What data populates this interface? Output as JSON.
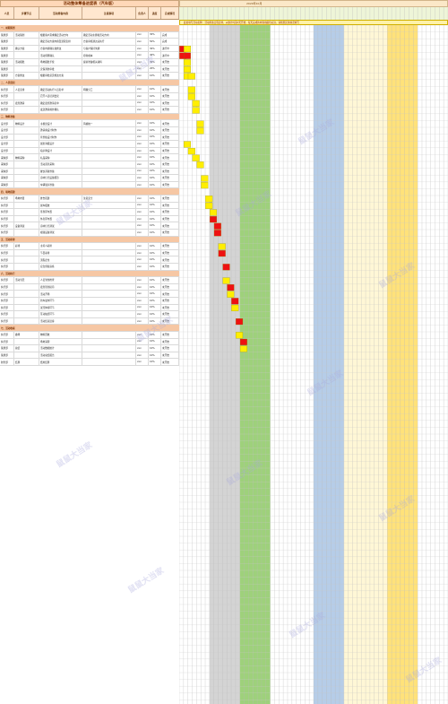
{
  "title": "活动整体筹备进度表（汽车版）",
  "month": "2020年10月",
  "notice": "此处填写活动名称：活动筹备日程安排，从倒计时第X天开始，每天完成的内容用颜色标注，请按照实际情况填写",
  "headers": [
    "人员",
    "步骤节点",
    "活动筹备内容",
    "注意事项",
    "负责人",
    "进度",
    "完成情况"
  ],
  "watermark": "鼠鼠大当家",
  "colors": {
    "red": "#ee1111",
    "yellow": "#ffee00",
    "band_gray": "#d4d4d4",
    "band_green": "#9ed17b",
    "band_blue": "#b6cde8",
    "band_yellow": "#ffe27a",
    "section": "#f6c7a4"
  },
  "sections": [
    {
      "label": "一、前期策划",
      "rows": [
        [
          "策划部",
          "活动策划",
          "根据客户需求确定活动方向",
          "确定活动主题和活动方向",
          "xxx",
          "30%",
          "完成"
        ],
        [
          "策划部",
          "",
          "确定活动方案内容及流程安排",
          "方案审核通过后执行",
          "xxx",
          "50%",
          "完成"
        ],
        [
          "策划部",
          "确认方案",
          "方案内容确认和修改",
          "与客户保持沟通",
          "xxx",
          "30%",
          "进行中"
        ],
        [
          "策划部",
          "",
          "活动预算确认",
          "控制成本",
          "xxx",
          "40%",
          "进行中"
        ],
        [
          "策划部",
          "活动报批",
          "场地报批手续",
          "提前准备相关资料",
          "xxx",
          "30%",
          "未开始"
        ],
        [
          "策划部",
          "",
          "安保消防审批",
          "",
          "xxx",
          "20%",
          "未开始"
        ],
        [
          "策划部",
          "方案修改",
          "根据审批意见修改方案",
          "",
          "xxx",
          "10%",
          "未开始"
        ]
      ]
    },
    {
      "label": "二、人员组织",
      "rows": [
        [
          "执行部",
          "人员安排",
          "确定活动执行人员名单",
          "明确分工",
          "xxx",
          "10%",
          "未开始"
        ],
        [
          "执行部",
          "",
          "召开人员培训会议",
          "",
          "xxx",
          "10%",
          "未开始"
        ],
        [
          "执行部",
          "嘉宾邀请",
          "确定嘉宾邀请名单",
          "",
          "xxx",
          "10%",
          "未开始"
        ],
        [
          "执行部",
          "",
          "发送邀请函并确认",
          "",
          "xxx",
          "10%",
          "未开始"
        ]
      ]
    },
    {
      "label": "三、物料准备",
      "rows": [
        [
          "设计部",
          "物料设计",
          "主视觉设计",
          "风格统一",
          "xxx",
          "10%",
          "未开始"
        ],
        [
          "设计部",
          "",
          "邀请函设计制作",
          "",
          "xxx",
          "10%",
          "未开始"
        ],
        [
          "设计部",
          "",
          "背景板设计制作",
          "",
          "xxx",
          "10%",
          "未开始"
        ],
        [
          "设计部",
          "",
          "展架海报设计",
          "",
          "xxx",
          "10%",
          "未开始"
        ],
        [
          "设计部",
          "",
          "指示牌设计",
          "",
          "xxx",
          "10%",
          "未开始"
        ],
        [
          "采购部",
          "物料采购",
          "礼品采购",
          "",
          "xxx",
          "10%",
          "未开始"
        ],
        [
          "采购部",
          "",
          "活动道具采购",
          "",
          "xxx",
          "10%",
          "未开始"
        ],
        [
          "采购部",
          "",
          "餐饮茶歇准备",
          "",
          "xxx",
          "10%",
          "未开始"
        ],
        [
          "采购部",
          "",
          "音响灯光设备租赁",
          "",
          "xxx",
          "10%",
          "未开始"
        ],
        [
          "采购部",
          "",
          "车辆展示准备",
          "",
          "xxx",
          "10%",
          "未开始"
        ]
      ]
    },
    {
      "label": "四、场地搭建",
      "rows": [
        [
          "执行部",
          "场地布置",
          "舞台搭建",
          "注意安全",
          "xxx",
          "10%",
          "未开始"
        ],
        [
          "执行部",
          "",
          "展车摆放",
          "",
          "xxx",
          "10%",
          "未开始"
        ],
        [
          "执行部",
          "",
          "签到区布置",
          "",
          "xxx",
          "10%",
          "未开始"
        ],
        [
          "执行部",
          "",
          "休息区布置",
          "",
          "xxx",
          "10%",
          "未开始"
        ],
        [
          "执行部",
          "设备调试",
          "音响灯光调试",
          "",
          "xxx",
          "10%",
          "未开始"
        ],
        [
          "执行部",
          "",
          "视频设备调试",
          "",
          "xxx",
          "10%",
          "未开始"
        ]
      ]
    },
    {
      "label": "五、活动彩排",
      "rows": [
        [
          "执行部",
          "彩排",
          "主持人彩排",
          "",
          "xxx",
          "10%",
          "未开始"
        ],
        [
          "执行部",
          "",
          "节目彩排",
          "",
          "xxx",
          "10%",
          "未开始"
        ],
        [
          "执行部",
          "",
          "流程走位",
          "",
          "xxx",
          "10%",
          "未开始"
        ],
        [
          "执行部",
          "",
          "应急预案演练",
          "",
          "xxx",
          "10%",
          "未开始"
        ]
      ]
    },
    {
      "label": "六、活动执行",
      "rows": [
        [
          "执行部",
          "活动当天",
          "人员到位检查",
          "",
          "xxx",
          "10%",
          "未开始"
        ],
        [
          "执行部",
          "",
          "嘉宾签到接待",
          "",
          "xxx",
          "10%",
          "未开始"
        ],
        [
          "执行部",
          "",
          "活动开场",
          "",
          "xxx",
          "10%",
          "未开始"
        ],
        [
          "执行部",
          "",
          "新车发布环节",
          "",
          "xxx",
          "10%",
          "未开始"
        ],
        [
          "执行部",
          "",
          "试驾体验环节",
          "",
          "xxx",
          "10%",
          "未开始"
        ],
        [
          "执行部",
          "",
          "互动抽奖环节",
          "",
          "xxx",
          "10%",
          "未开始"
        ],
        [
          "执行部",
          "",
          "活动结束送客",
          "",
          "xxx",
          "10%",
          "未开始"
        ]
      ]
    },
    {
      "label": "七、活动收尾",
      "rows": [
        [
          "执行部",
          "撤场",
          "物料回收",
          "",
          "xxx",
          "10%",
          "未开始"
        ],
        [
          "执行部",
          "",
          "场地清理",
          "",
          "xxx",
          "10%",
          "未开始"
        ],
        [
          "策划部",
          "总结",
          "活动数据统计",
          "",
          "xxx",
          "10%",
          "未开始"
        ],
        [
          "策划部",
          "",
          "活动总结报告",
          "",
          "xxx",
          "10%",
          "未开始"
        ],
        [
          "财务部",
          "结算",
          "费用结算",
          "",
          "xxx",
          "10%",
          "未开始"
        ]
      ]
    }
  ],
  "gantt_marks": [
    {
      "row": 2,
      "col": 0,
      "c": "red"
    },
    {
      "row": 2,
      "col": 1,
      "c": "yellow"
    },
    {
      "row": 3,
      "col": 0,
      "c": "red"
    },
    {
      "row": 3,
      "col": 1,
      "c": "red"
    },
    {
      "row": 4,
      "col": 1,
      "c": "yellow"
    },
    {
      "row": 5,
      "col": 1,
      "c": "yellow"
    },
    {
      "row": 6,
      "col": 1,
      "c": "yellow"
    },
    {
      "row": 6,
      "col": 2,
      "c": "yellow"
    },
    {
      "row": 7,
      "col": 2,
      "c": "yellow"
    },
    {
      "row": 8,
      "col": 2,
      "c": "yellow"
    },
    {
      "row": 9,
      "col": 3,
      "c": "yellow"
    },
    {
      "row": 10,
      "col": 3,
      "c": "yellow"
    },
    {
      "row": 11,
      "col": 4,
      "c": "yellow"
    },
    {
      "row": 12,
      "col": 4,
      "c": "yellow"
    },
    {
      "row": 14,
      "col": 1,
      "c": "yellow"
    },
    {
      "row": 15,
      "col": 2,
      "c": "yellow"
    },
    {
      "row": 16,
      "col": 3,
      "c": "yellow"
    },
    {
      "row": 17,
      "col": 4,
      "c": "yellow"
    },
    {
      "row": 19,
      "col": 5,
      "c": "yellow"
    },
    {
      "row": 20,
      "col": 5,
      "c": "yellow"
    },
    {
      "row": 21,
      "col": 6,
      "c": "yellow"
    },
    {
      "row": 22,
      "col": 6,
      "c": "yellow"
    },
    {
      "row": 23,
      "col": 7,
      "c": "yellow"
    },
    {
      "row": 24,
      "col": 7,
      "c": "red"
    },
    {
      "row": 25,
      "col": 8,
      "c": "red"
    },
    {
      "row": 26,
      "col": 8,
      "c": "red"
    },
    {
      "row": 27,
      "col": 9,
      "c": "yellow"
    },
    {
      "row": 28,
      "col": 9,
      "c": "red"
    },
    {
      "row": 30,
      "col": 10,
      "c": "red"
    },
    {
      "row": 31,
      "col": 10,
      "c": "yellow"
    },
    {
      "row": 32,
      "col": 11,
      "c": "red"
    },
    {
      "row": 33,
      "col": 11,
      "c": "yellow"
    },
    {
      "row": 34,
      "col": 12,
      "c": "red"
    },
    {
      "row": 35,
      "col": 12,
      "c": "yellow"
    },
    {
      "row": 37,
      "col": 13,
      "c": "red"
    },
    {
      "row": 38,
      "col": 13,
      "c": "yellow"
    },
    {
      "row": 39,
      "col": 14,
      "c": "red"
    },
    {
      "row": 40,
      "col": 14,
      "c": "yellow"
    }
  ]
}
